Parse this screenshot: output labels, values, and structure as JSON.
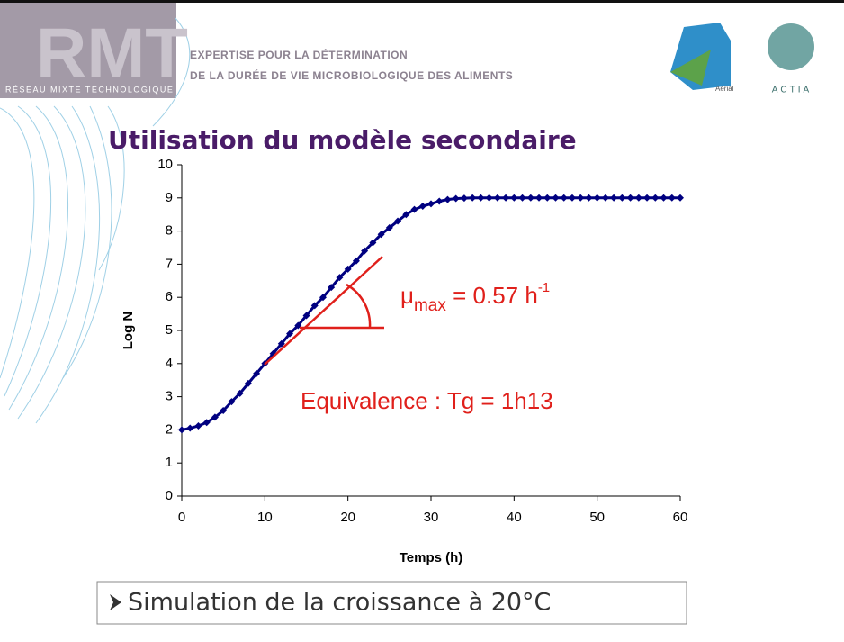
{
  "header": {
    "logo": "RMT",
    "network": "RÉSEAU MIXTE TECHNOLOGIQUE",
    "line1": "EXPERTISE POUR LA DÉTERMINATION",
    "line2": "DE LA DURÉE DE VIE MICROBIOLOGIQUE DES ALIMENTS",
    "partner1": "Aérial",
    "partner2": "ACTIA"
  },
  "slide_title": "Utilisation du modèle secondaire",
  "chart_data": {
    "type": "line",
    "x": [
      0,
      1,
      2,
      3,
      4,
      5,
      6,
      7,
      8,
      9,
      10,
      11,
      12,
      13,
      14,
      15,
      16,
      17,
      18,
      19,
      20,
      21,
      22,
      23,
      24,
      25,
      26,
      27,
      28,
      29,
      30,
      31,
      32,
      33,
      34,
      35,
      36,
      37,
      38,
      39,
      40,
      41,
      42,
      43,
      44,
      45,
      46,
      47,
      48,
      49,
      50,
      51,
      52,
      53,
      54,
      55,
      56,
      57,
      58,
      59,
      60
    ],
    "series": [
      {
        "color": "#000080",
        "values": [
          2.0,
          2.05,
          2.12,
          2.22,
          2.38,
          2.58,
          2.85,
          3.1,
          3.4,
          3.7,
          4.0,
          4.3,
          4.6,
          4.9,
          5.15,
          5.45,
          5.75,
          6.0,
          6.3,
          6.6,
          6.85,
          7.1,
          7.4,
          7.65,
          7.9,
          8.1,
          8.3,
          8.5,
          8.65,
          8.75,
          8.82,
          8.9,
          8.95,
          8.98,
          8.99,
          9,
          9,
          9,
          9,
          9,
          9,
          9,
          9,
          9,
          9,
          9,
          9,
          9,
          9,
          9,
          9,
          9,
          9,
          9,
          9,
          9,
          9,
          9,
          9,
          9,
          9
        ]
      }
    ],
    "xlim": [
      0,
      60
    ],
    "xticks": [
      0,
      10,
      20,
      30,
      40,
      50,
      60
    ],
    "ylim": [
      0,
      10
    ],
    "yticks": [
      0,
      1,
      2,
      3,
      4,
      5,
      6,
      7,
      8,
      9,
      10
    ],
    "xlabel": "Temps (h)",
    "ylabel": "Log N",
    "annotations": {
      "mu": "μ",
      "mu_sub": "max",
      "mu_value": " = 0.57 h",
      "mu_sup": "-1",
      "equivalence": "Equivalence : Tg = 1h13"
    }
  },
  "footer_box": "Simulation de la croissance à 20°C"
}
